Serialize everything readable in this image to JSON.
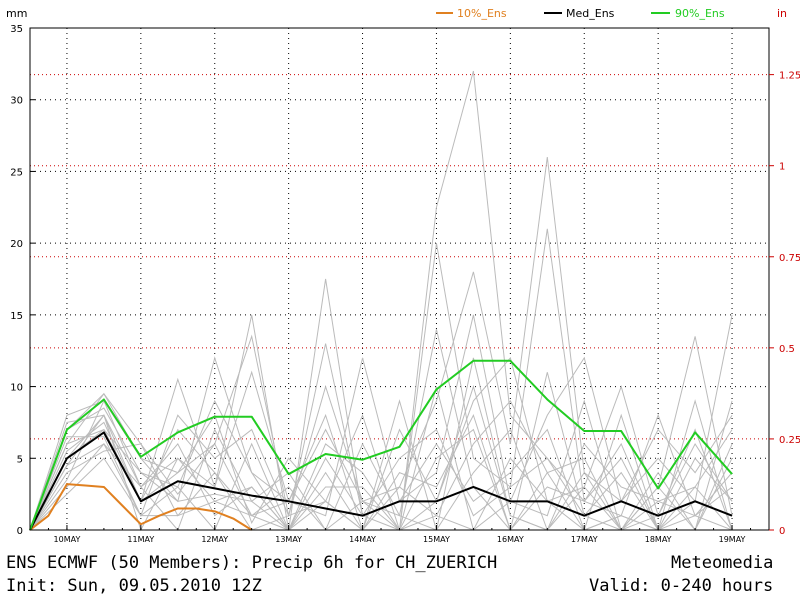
{
  "chart_data": {
    "type": "line",
    "title": "ENS ECMWF (50 Members): Precip 6h for CH_ZUERICH",
    "provider": "Meteomedia",
    "init": "Init: Sun, 09.05.2010 12Z",
    "valid": "Valid: 0-240 hours",
    "ylabel_left": "mm",
    "ylabel_right": "in",
    "ylim": [
      0,
      35
    ],
    "y_ticks_left": [
      "0",
      "5",
      "10",
      "15",
      "20",
      "25",
      "30",
      "35"
    ],
    "y_ticks_right": [
      "0",
      "0.25",
      "0.5",
      "0.75",
      "1",
      "1.25"
    ],
    "y_ticks_right_values_mm": [
      0,
      6.35,
      12.7,
      19.05,
      25.4,
      31.75
    ],
    "x_ticks": [
      "10MAY",
      "11MAY",
      "12MAY",
      "13MAY",
      "14MAY",
      "15MAY",
      "16MAY",
      "17MAY",
      "18MAY",
      "19MAY"
    ],
    "x_tick_hours": [
      12,
      36,
      60,
      84,
      108,
      132,
      156,
      180,
      204,
      228
    ],
    "x_range_hours": [
      0,
      240
    ],
    "x_step_hours": 6,
    "grid": true,
    "legend_position": "top",
    "series": [
      {
        "name": "10%_Ens",
        "color": "#e08020",
        "hours": [
          0,
          6,
          12,
          18,
          24,
          30,
          36,
          42,
          48,
          54,
          60,
          66,
          72
        ],
        "values": [
          0,
          1.0,
          3.2,
          3.1,
          3.0,
          1.7,
          0.4,
          1.0,
          1.5,
          1.5,
          1.3,
          0.8,
          0
        ]
      },
      {
        "name": "Med_Ens",
        "color": "#000000",
        "hours": [
          0,
          12,
          24,
          36,
          48,
          60,
          72,
          84,
          96,
          108,
          120,
          132,
          144,
          156,
          168,
          180,
          192,
          204,
          216,
          228
        ],
        "values": [
          0,
          5.0,
          6.8,
          2.0,
          3.4,
          2.9,
          2.4,
          2.0,
          1.5,
          1.0,
          2.0,
          2.0,
          3.0,
          2.0,
          2.0,
          1.0,
          2.0,
          1.0,
          2.0,
          1.0
        ]
      },
      {
        "name": "90%_Ens",
        "color": "#22cc22",
        "hours": [
          0,
          12,
          24,
          36,
          48,
          60,
          72,
          84,
          96,
          108,
          120,
          132,
          144,
          156,
          168,
          180,
          192,
          204,
          216,
          228
        ],
        "values": [
          0,
          7.0,
          9.1,
          5.1,
          6.8,
          7.9,
          7.9,
          3.9,
          5.3,
          4.9,
          5.8,
          9.8,
          11.8,
          11.8,
          9.1,
          6.9,
          6.9,
          2.9,
          6.8,
          3.9
        ]
      }
    ],
    "members_color": "#bbbbbb",
    "members": [
      [
        0,
        4.5,
        8.0,
        3.0,
        5.0,
        2.0,
        1.0,
        0.0,
        2.0,
        0.0,
        0.0,
        22.5,
        32.0,
        8.0,
        5.0,
        2.0,
        1.0,
        0.0,
        1.0,
        0.0
      ],
      [
        0,
        6.0,
        9.5,
        5.0,
        4.0,
        6.0,
        13.5,
        1.0,
        10.0,
        2.0,
        3.0,
        9.0,
        18.0,
        6.0,
        26.0,
        4.0,
        0.0,
        3.0,
        13.5,
        1.0
      ],
      [
        0,
        5.0,
        7.0,
        2.0,
        10.5,
        3.0,
        15.0,
        0.0,
        17.5,
        1.0,
        0.0,
        20.0,
        5.0,
        3.0,
        21.0,
        2.0,
        5.0,
        0.0,
        2.0,
        15.0
      ],
      [
        0,
        3.0,
        6.0,
        1.0,
        3.0,
        9.0,
        4.0,
        2.0,
        1.0,
        12.0,
        2.0,
        4.0,
        15.0,
        2.0,
        8.0,
        12.0,
        2.0,
        7.0,
        4.0,
        8.0
      ],
      [
        0,
        7.0,
        8.5,
        4.0,
        2.0,
        2.5,
        2.0,
        0.0,
        4.0,
        0.0,
        7.0,
        2.0,
        9.0,
        12.0,
        2.0,
        3.0,
        10.0,
        1.0,
        6.0,
        2.0
      ],
      [
        0,
        4.0,
        5.5,
        6.0,
        1.0,
        4.0,
        1.0,
        3.0,
        0.0,
        2.0,
        1.0,
        14.0,
        3.0,
        0.0,
        11.0,
        1.0,
        0.0,
        4.0,
        0.0,
        5.0
      ],
      [
        0,
        8.0,
        9.0,
        3.0,
        6.0,
        1.0,
        3.0,
        0.0,
        6.0,
        4.0,
        0.0,
        1.0,
        6.0,
        9.0,
        4.0,
        0.0,
        8.0,
        0.0,
        9.0,
        0.0
      ],
      [
        0,
        5.5,
        7.5,
        2.0,
        4.0,
        8.0,
        0.5,
        5.0,
        2.0,
        0.0,
        9.0,
        0.0,
        12.0,
        1.0,
        0.0,
        6.0,
        3.0,
        2.0,
        3.0,
        7.0
      ],
      [
        0,
        6.5,
        6.5,
        1.0,
        8.0,
        5.0,
        7.0,
        1.0,
        13.0,
        1.0,
        2.0,
        6.0,
        2.0,
        4.0,
        7.0,
        0.0,
        1.0,
        8.0,
        1.0,
        3.0
      ],
      [
        0,
        3.5,
        9.0,
        5.0,
        2.0,
        12.0,
        4.0,
        0.0,
        3.0,
        3.0,
        0.0,
        10.0,
        0.0,
        2.0,
        1.0,
        9.0,
        0.0,
        1.0,
        7.0,
        0.0
      ],
      [
        0,
        7.5,
        8.0,
        0.0,
        5.0,
        3.0,
        11.0,
        2.0,
        8.0,
        0.0,
        4.0,
        3.0,
        8.0,
        0.0,
        3.0,
        2.0,
        6.0,
        0.0,
        0.0,
        6.0
      ],
      [
        0,
        4.5,
        6.0,
        3.0,
        0.0,
        7.0,
        2.0,
        4.0,
        0.0,
        6.0,
        1.0,
        0.0,
        4.0,
        7.0,
        0.0,
        4.0,
        2.0,
        5.0,
        2.0,
        1.0
      ],
      [
        0,
        6.0,
        7.0,
        4.0,
        3.0,
        0.0,
        6.0,
        0.0,
        5.0,
        1.0,
        5.0,
        7.0,
        1.0,
        3.0,
        5.0,
        1.0,
        4.0,
        0.0,
        5.0,
        2.0
      ],
      [
        0,
        5.0,
        8.0,
        2.0,
        7.0,
        4.0,
        0.0,
        1.0,
        2.0,
        8.0,
        0.0,
        2.0,
        10.0,
        1.0,
        0.0,
        3.0,
        0.0,
        2.0,
        1.0,
        4.0
      ],
      [
        0,
        2.5,
        5.0,
        1.0,
        1.0,
        2.0,
        3.0,
        0.0,
        0.0,
        0.0,
        3.0,
        1.0,
        0.0,
        5.0,
        2.0,
        0.0,
        1.0,
        0.0,
        3.0,
        0.0
      ],
      [
        0,
        7.0,
        9.5,
        6.0,
        2.5,
        6.0,
        1.0,
        2.0,
        7.0,
        2.0,
        0.0,
        5.0,
        7.0,
        0.0,
        4.0,
        5.0,
        0.0,
        3.0,
        0.0,
        9.0
      ]
    ]
  }
}
